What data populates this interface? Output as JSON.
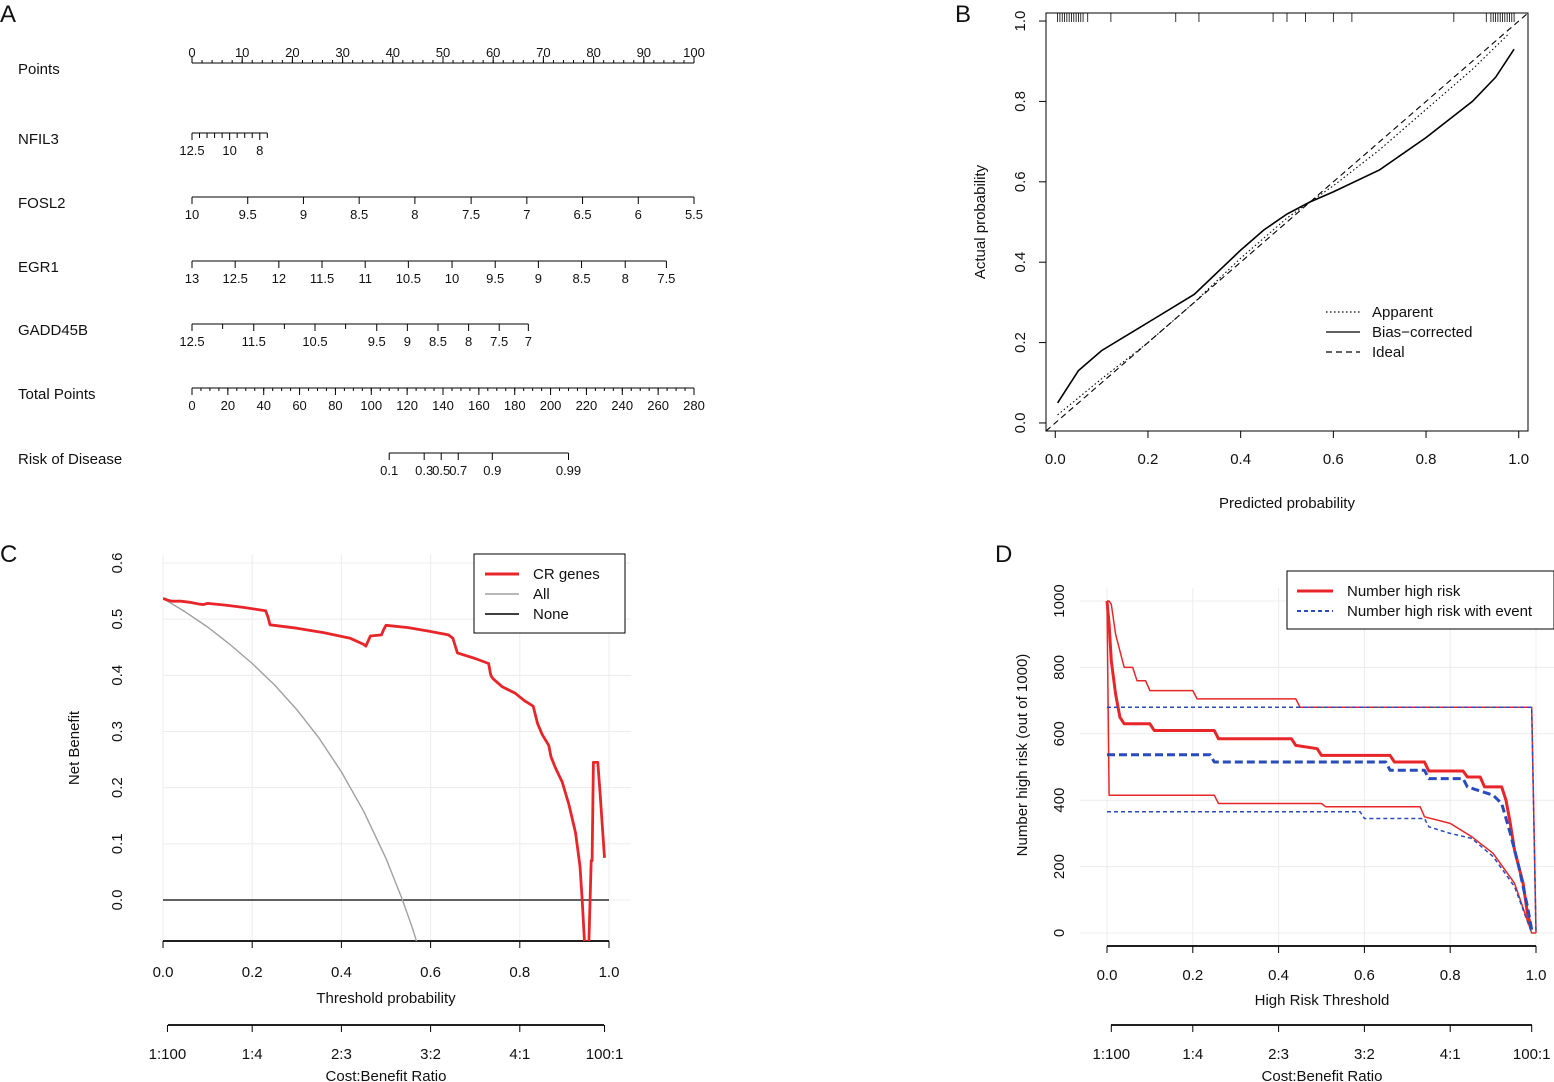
{
  "chart_data": [
    {
      "panel": "A",
      "type": "nomogram",
      "rows": [
        {
          "label": "Points",
          "ticks": [
            {
              "pt": 0,
              "label": "0"
            },
            {
              "pt": 10,
              "label": "10"
            },
            {
              "pt": 20,
              "label": "20"
            },
            {
              "pt": 30,
              "label": "30"
            },
            {
              "pt": 40,
              "label": "40"
            },
            {
              "pt": 50,
              "label": "50"
            },
            {
              "pt": 60,
              "label": "60"
            },
            {
              "pt": 70,
              "label": "70"
            },
            {
              "pt": 80,
              "label": "80"
            },
            {
              "pt": 90,
              "label": "90"
            },
            {
              "pt": 100,
              "label": "100"
            }
          ],
          "minor_step": 2,
          "label_side": "above",
          "range": [
            0,
            100
          ]
        },
        {
          "label": "NFIL3",
          "range": [
            0,
            15
          ],
          "ticks": [
            {
              "pt": 0,
              "label": "12.5"
            },
            {
              "pt": 7.5,
              "label": "10"
            },
            {
              "pt": 13.5,
              "label": "8"
            }
          ],
          "minor_ticks": [
            1.5,
            3,
            4.5,
            6,
            9,
            10.5,
            12,
            15
          ],
          "label_side": "below"
        },
        {
          "label": "FOSL2",
          "range": [
            0,
            100
          ],
          "ticks": [
            {
              "pt": 0,
              "label": "10"
            },
            {
              "pt": 11.1,
              "label": "9.5"
            },
            {
              "pt": 22.2,
              "label": "9"
            },
            {
              "pt": 33.3,
              "label": "8.5"
            },
            {
              "pt": 44.4,
              "label": "8"
            },
            {
              "pt": 55.6,
              "label": "7.5"
            },
            {
              "pt": 66.7,
              "label": "7"
            },
            {
              "pt": 77.8,
              "label": "6.5"
            },
            {
              "pt": 88.9,
              "label": "6"
            },
            {
              "pt": 100,
              "label": "5.5"
            }
          ],
          "label_side": "below"
        },
        {
          "label": "EGR1",
          "range": [
            0,
            94.5
          ],
          "ticks": [
            {
              "pt": 0,
              "label": "13"
            },
            {
              "pt": 8.6,
              "label": "12.5"
            },
            {
              "pt": 17.3,
              "label": "12"
            },
            {
              "pt": 25.9,
              "label": "11.5"
            },
            {
              "pt": 34.5,
              "label": "11"
            },
            {
              "pt": 43.1,
              "label": "10.5"
            },
            {
              "pt": 51.8,
              "label": "10"
            },
            {
              "pt": 60.4,
              "label": "9.5"
            },
            {
              "pt": 69,
              "label": "9"
            },
            {
              "pt": 77.6,
              "label": "8.5"
            },
            {
              "pt": 86.3,
              "label": "8"
            },
            {
              "pt": 94.5,
              "label": "7.5"
            }
          ],
          "label_side": "below"
        },
        {
          "label": "GADD45B",
          "range": [
            0,
            67
          ],
          "ticks": [
            {
              "pt": 0,
              "label": "12.5"
            },
            {
              "pt": 12.3,
              "label": "11.5"
            },
            {
              "pt": 24.5,
              "label": "10.5"
            },
            {
              "pt": 36.8,
              "label": "9.5"
            },
            {
              "pt": 42.9,
              "label": "9"
            },
            {
              "pt": 49,
              "label": "8.5"
            },
            {
              "pt": 55.1,
              "label": "8"
            },
            {
              "pt": 61.2,
              "label": "7.5"
            },
            {
              "pt": 67,
              "label": "7"
            }
          ],
          "minor_ticks": [
            6.1,
            18.4,
            30.6
          ],
          "label_side": "below"
        },
        {
          "label": "Total Points",
          "range": [
            0,
            280
          ],
          "ticks": [
            {
              "pt": 0,
              "label": "0"
            },
            {
              "pt": 20,
              "label": "20"
            },
            {
              "pt": 40,
              "label": "40"
            },
            {
              "pt": 60,
              "label": "60"
            },
            {
              "pt": 80,
              "label": "80"
            },
            {
              "pt": 100,
              "label": "100"
            },
            {
              "pt": 120,
              "label": "120"
            },
            {
              "pt": 140,
              "label": "140"
            },
            {
              "pt": 160,
              "label": "160"
            },
            {
              "pt": 180,
              "label": "180"
            },
            {
              "pt": 200,
              "label": "200"
            },
            {
              "pt": 220,
              "label": "220"
            },
            {
              "pt": 240,
              "label": "240"
            },
            {
              "pt": 260,
              "label": "260"
            },
            {
              "pt": 280,
              "label": "280"
            }
          ],
          "minor_step": 5,
          "label_side": "below"
        },
        {
          "label": "Risk of Disease",
          "range": [
            110,
            210
          ],
          "total_points_scale": true,
          "ticks": [
            {
              "pt": 110,
              "label": "0.1"
            },
            {
              "pt": 129.5,
              "label": "0.3"
            },
            {
              "pt": 139,
              "label": "0.5"
            },
            {
              "pt": 148.5,
              "label": "0.7"
            },
            {
              "pt": 167.5,
              "label": "0.9"
            },
            {
              "pt": 210,
              "label": "0.99"
            }
          ],
          "label_side": "below"
        }
      ]
    },
    {
      "panel": "B",
      "type": "line",
      "title": "",
      "xlabel": "Predicted probability",
      "ylabel": "Actual probability",
      "xlim": [
        -0.02,
        1.02
      ],
      "ylim": [
        -0.02,
        1.02
      ],
      "xticks": [
        "0.0",
        "0.2",
        "0.4",
        "0.6",
        "0.8",
        "1.0"
      ],
      "yticks": [
        "0.0",
        "0.2",
        "0.4",
        "0.6",
        "0.8",
        "1.0"
      ],
      "legend": [
        "Apparent",
        "Bias−corrected",
        "Ideal"
      ],
      "legend_position": "bottom-right",
      "series": [
        {
          "name": "Apparent",
          "style": "dotted",
          "x": [
            0.005,
            0.1,
            0.2,
            0.3,
            0.4,
            0.5,
            0.55,
            0.6,
            0.7,
            0.8,
            0.9,
            0.98
          ],
          "y": [
            0.02,
            0.11,
            0.2,
            0.3,
            0.41,
            0.51,
            0.55,
            0.59,
            0.68,
            0.78,
            0.88,
            0.97
          ]
        },
        {
          "name": "Bias−corrected",
          "style": "solid",
          "x": [
            0.005,
            0.05,
            0.1,
            0.2,
            0.3,
            0.4,
            0.45,
            0.5,
            0.55,
            0.6,
            0.7,
            0.8,
            0.9,
            0.95,
            0.99
          ],
          "y": [
            0.05,
            0.13,
            0.18,
            0.25,
            0.32,
            0.43,
            0.48,
            0.52,
            0.55,
            0.575,
            0.63,
            0.71,
            0.8,
            0.86,
            0.93
          ]
        },
        {
          "name": "Ideal",
          "style": "dashed",
          "x": [
            -0.02,
            1.02
          ],
          "y": [
            -0.02,
            1.02
          ]
        }
      ],
      "rug_top": [
        0.005,
        0.01,
        0.015,
        0.02,
        0.025,
        0.03,
        0.035,
        0.04,
        0.045,
        0.05,
        0.055,
        0.06,
        0.07,
        0.12,
        0.26,
        0.31,
        0.47,
        0.5,
        0.54,
        0.6,
        0.64,
        0.86,
        0.93,
        0.94,
        0.945,
        0.95,
        0.955,
        0.96,
        0.965,
        0.97,
        0.975,
        0.98,
        0.985,
        0.99
      ]
    },
    {
      "panel": "C",
      "type": "line",
      "xlabel": "Threshold probability",
      "ylabel": "Net Benefit",
      "xlim": [
        0,
        1
      ],
      "ylim": [
        -0.095,
        0.6
      ],
      "xticks": [
        "0.0",
        "0.2",
        "0.4",
        "0.6",
        "0.8",
        "1.0"
      ],
      "yticks": [
        "0.0",
        "0.1",
        "0.2",
        "0.3",
        "0.4",
        "0.5",
        "0.6"
      ],
      "secondary_axis_label": "Cost:Benefit Ratio",
      "secondary_ticks": [
        {
          "x": 0.01,
          "label": "1:100"
        },
        {
          "x": 0.2,
          "label": "1:4"
        },
        {
          "x": 0.4,
          "label": "2:3"
        },
        {
          "x": 0.6,
          "label": "3:2"
        },
        {
          "x": 0.8,
          "label": "4:1"
        },
        {
          "x": 0.99,
          "label": "100:1"
        }
      ],
      "legend": [
        "CR genes",
        "All",
        "None"
      ],
      "legend_position": "top-right",
      "series": [
        {
          "name": "CR genes",
          "color": "#e8262a",
          "x": [
            0,
            0.01,
            0.02,
            0.04,
            0.06,
            0.08,
            0.09,
            0.1,
            0.14,
            0.18,
            0.23,
            0.235,
            0.24,
            0.3,
            0.36,
            0.42,
            0.45,
            0.455,
            0.465,
            0.49,
            0.495,
            0.5,
            0.55,
            0.6,
            0.64,
            0.65,
            0.66,
            0.7,
            0.73,
            0.735,
            0.74,
            0.76,
            0.79,
            0.81,
            0.83,
            0.84,
            0.85,
            0.865,
            0.87,
            0.88,
            0.895,
            0.91,
            0.925,
            0.935,
            0.94,
            0.945,
            0.948,
            0.951,
            0.955,
            0.96,
            0.962,
            0.965,
            0.968,
            0.972,
            0.975,
            0.98,
            0.99
          ],
          "y": [
            0.537,
            0.534,
            0.532,
            0.532,
            0.53,
            0.527,
            0.526,
            0.528,
            0.525,
            0.521,
            0.515,
            0.505,
            0.49,
            0.484,
            0.476,
            0.466,
            0.455,
            0.452,
            0.47,
            0.472,
            0.482,
            0.489,
            0.485,
            0.478,
            0.472,
            0.466,
            0.44,
            0.43,
            0.421,
            0.4,
            0.394,
            0.38,
            0.368,
            0.355,
            0.345,
            0.314,
            0.295,
            0.275,
            0.255,
            0.235,
            0.21,
            0.17,
            0.12,
            0.06,
            0.0,
            -0.075,
            -0.075,
            -0.075,
            -0.075,
            0.07,
            0.07,
            0.245,
            0.245,
            0.245,
            0.245,
            0.19,
            0.075
          ]
        },
        {
          "name": "All",
          "color": "#a0a0a0",
          "x": [
            0,
            0.05,
            0.1,
            0.15,
            0.2,
            0.25,
            0.3,
            0.35,
            0.4,
            0.45,
            0.5,
            0.537,
            0.56,
            0.575
          ],
          "y": [
            0.537,
            0.513,
            0.486,
            0.455,
            0.421,
            0.383,
            0.339,
            0.288,
            0.228,
            0.158,
            0.074,
            0.0,
            -0.052,
            -0.09
          ]
        },
        {
          "name": "None",
          "color": "#000000",
          "x": [
            0,
            1
          ],
          "y": [
            0,
            0
          ]
        }
      ]
    },
    {
      "panel": "D",
      "type": "line",
      "xlabel": "High Risk Threshold",
      "ylabel": "Number high risk (out of 1000)",
      "xlim": [
        -0.06,
        1.04
      ],
      "ylim": [
        0,
        1040
      ],
      "xticks": [
        "0.0",
        "0.2",
        "0.4",
        "0.6",
        "0.8",
        "1.0"
      ],
      "yticks": [
        "0",
        "200",
        "400",
        "600",
        "800",
        "1000"
      ],
      "secondary_axis_label": "Cost:Benefit Ratio",
      "secondary_ticks": [
        {
          "x": 0.01,
          "label": "1:100"
        },
        {
          "x": 0.2,
          "label": "1:4"
        },
        {
          "x": 0.4,
          "label": "2:3"
        },
        {
          "x": 0.6,
          "label": "3:2"
        },
        {
          "x": 0.8,
          "label": "4:1"
        },
        {
          "x": 0.99,
          "label": "100:1"
        }
      ],
      "legend": [
        "Number high risk",
        "Number high risk with event"
      ],
      "legend_position": "top-right",
      "series": [
        {
          "name": "Number high risk",
          "color": "#e8262a",
          "width": 3,
          "x": [
            0,
            0.005,
            0.01,
            0.02,
            0.03,
            0.04,
            0.05,
            0.06,
            0.1,
            0.11,
            0.25,
            0.26,
            0.43,
            0.44,
            0.49,
            0.5,
            0.66,
            0.67,
            0.74,
            0.75,
            0.83,
            0.84,
            0.87,
            0.88,
            0.92,
            0.93,
            0.94,
            0.95,
            0.97,
            0.98,
            0.99
          ],
          "y": [
            1000,
            930,
            820,
            720,
            650,
            630,
            630,
            630,
            630,
            610,
            610,
            585,
            585,
            565,
            555,
            535,
            535,
            515,
            515,
            488,
            488,
            470,
            470,
            440,
            440,
            400,
            330,
            250,
            150,
            60,
            10
          ]
        },
        {
          "name": "Number high risk upper",
          "color": "#e8262a",
          "width": 1.5,
          "x": [
            0,
            0.005,
            0.01,
            0.02,
            0.03,
            0.04,
            0.06,
            0.07,
            0.09,
            0.1,
            0.2,
            0.21,
            0.44,
            0.45,
            0.97,
            0.98,
            0.99,
            1.0
          ],
          "y": [
            1000,
            1000,
            990,
            900,
            850,
            800,
            800,
            760,
            760,
            730,
            730,
            705,
            705,
            680,
            680,
            680,
            680,
            0
          ]
        },
        {
          "name": "Number high risk lower",
          "color": "#e8262a",
          "width": 1.5,
          "x": [
            0,
            0.005,
            0.01,
            0.25,
            0.26,
            0.5,
            0.51,
            0.73,
            0.74,
            0.8,
            0.85,
            0.9,
            0.95,
            0.99,
            1.0
          ],
          "y": [
            1000,
            415,
            415,
            415,
            390,
            390,
            380,
            380,
            350,
            330,
            290,
            240,
            150,
            0,
            0
          ]
        },
        {
          "name": "Number high risk with event",
          "color": "#2a4bbd",
          "width": 3,
          "style": "dashed",
          "x": [
            0,
            0.04,
            0.24,
            0.25,
            0.65,
            0.66,
            0.74,
            0.75,
            0.83,
            0.84,
            0.9,
            0.92,
            0.94,
            0.96,
            0.98,
            0.99
          ],
          "y": [
            537,
            537,
            537,
            515,
            515,
            490,
            490,
            465,
            465,
            440,
            415,
            390,
            300,
            200,
            80,
            10
          ]
        },
        {
          "name": "Number high risk with event upper",
          "color": "#2a4bbd",
          "width": 1.5,
          "style": "dashed",
          "x": [
            0,
            0.99,
            1.0
          ],
          "y": [
            680,
            680,
            0
          ]
        },
        {
          "name": "Number high risk with event lower",
          "color": "#2a4bbd",
          "width": 1.5,
          "style": "dashed",
          "x": [
            0,
            0.59,
            0.6,
            0.74,
            0.75,
            0.8,
            0.85,
            0.9,
            0.95,
            0.99
          ],
          "y": [
            365,
            365,
            345,
            345,
            320,
            300,
            285,
            230,
            140,
            0
          ]
        }
      ]
    }
  ],
  "panels": {
    "A": {
      "letter": "A"
    },
    "B": {
      "letter": "B"
    },
    "C": {
      "letter": "C"
    },
    "D": {
      "letter": "D"
    }
  }
}
